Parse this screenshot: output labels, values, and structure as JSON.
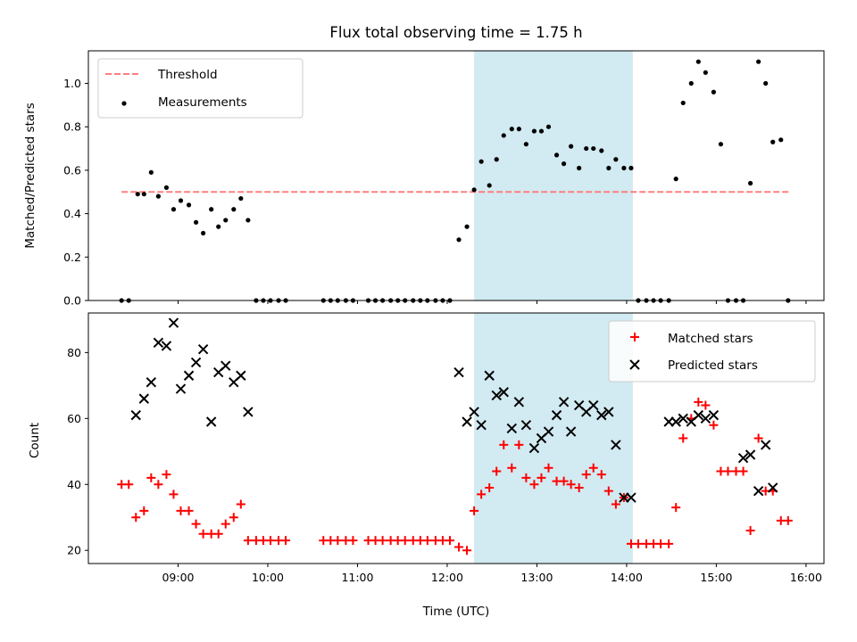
{
  "chart_data": {
    "title": "Flux total observing time = 1.75 h",
    "xlabel": "Time (UTC)",
    "x_unit": "hours UTC",
    "xlim": [
      8.0,
      16.2
    ],
    "xticks": [
      {
        "value": 9,
        "label": "09:00"
      },
      {
        "value": 10,
        "label": "10:00"
      },
      {
        "value": 11,
        "label": "11:00"
      },
      {
        "value": 12,
        "label": "12:00"
      },
      {
        "value": 13,
        "label": "13:00"
      },
      {
        "value": 14,
        "label": "14:00"
      },
      {
        "value": 15,
        "label": "15:00"
      },
      {
        "value": 16,
        "label": "16:00"
      }
    ],
    "shaded_span": {
      "start": 12.3,
      "end": 14.07,
      "color": "#add8e6"
    },
    "panels": [
      {
        "type": "scatter",
        "ylabel": "Matched/Predicted stars",
        "ylim": [
          0,
          1.15
        ],
        "yticks": [
          "0.0",
          "0.2",
          "0.4",
          "0.6",
          "0.8",
          "1.0"
        ],
        "legend_position": "upper-left",
        "threshold": {
          "name": "Threshold",
          "value": 0.5,
          "x_range": [
            8.37,
            15.83
          ],
          "color": "#ff7f7f"
        },
        "series": [
          {
            "name": "Measurements",
            "color": "#000000",
            "x": [
              8.37,
              8.45,
              8.55,
              8.62,
              8.7,
              8.78,
              8.87,
              8.95,
              9.03,
              9.12,
              9.2,
              9.28,
              9.37,
              9.45,
              9.53,
              9.62,
              9.7,
              9.78,
              9.87,
              9.95,
              10.03,
              10.12,
              10.2,
              10.62,
              10.7,
              10.78,
              10.87,
              10.95,
              11.12,
              11.2,
              11.28,
              11.37,
              11.45,
              11.53,
              11.62,
              11.7,
              11.78,
              11.87,
              11.95,
              12.03,
              12.13,
              12.22,
              12.3,
              12.38,
              12.47,
              12.55,
              12.63,
              12.72,
              12.8,
              12.88,
              12.97,
              13.05,
              13.13,
              13.22,
              13.3,
              13.38,
              13.47,
              13.55,
              13.63,
              13.72,
              13.8,
              13.88,
              13.97,
              14.05,
              14.13,
              14.22,
              14.3,
              14.38,
              14.47,
              14.55,
              14.63,
              14.72,
              14.8,
              14.88,
              14.97,
              15.05,
              15.13,
              15.22,
              15.3,
              15.38,
              15.47,
              15.55,
              15.63,
              15.72,
              15.8
            ],
            "y": [
              0,
              0,
              0.49,
              0.49,
              0.59,
              0.48,
              0.52,
              0.42,
              0.46,
              0.44,
              0.36,
              0.31,
              0.42,
              0.34,
              0.37,
              0.42,
              0.47,
              0.37,
              0,
              0,
              0,
              0,
              0,
              0,
              0,
              0,
              0,
              0,
              0,
              0,
              0,
              0,
              0,
              0,
              0,
              0,
              0,
              0,
              0,
              0,
              0.28,
              0.34,
              0.51,
              0.64,
              0.53,
              0.65,
              0.76,
              0.79,
              0.79,
              0.72,
              0.78,
              0.78,
              0.8,
              0.67,
              0.63,
              0.71,
              0.61,
              0.7,
              0.7,
              0.69,
              0.61,
              0.65,
              0.61,
              0.61,
              0,
              0,
              0,
              0,
              0,
              0.56,
              0.91,
              1.0,
              1.1,
              1.05,
              0.96,
              0.72,
              0,
              0,
              0,
              0.54,
              1.1,
              1.0,
              0.73,
              0.74,
              0
            ]
          }
        ]
      },
      {
        "type": "scatter",
        "ylabel": "Count",
        "ylim": [
          16,
          92
        ],
        "yticks": [
          "20",
          "40",
          "60",
          "80"
        ],
        "legend_position": "upper-right",
        "series": [
          {
            "name": "Matched stars",
            "marker": "+",
            "color": "#ff0000",
            "x": [
              8.37,
              8.45,
              8.53,
              8.62,
              8.7,
              8.78,
              8.87,
              8.95,
              9.03,
              9.12,
              9.2,
              9.28,
              9.37,
              9.45,
              9.53,
              9.62,
              9.7,
              9.78,
              9.87,
              9.95,
              10.03,
              10.12,
              10.2,
              10.62,
              10.7,
              10.78,
              10.87,
              10.95,
              11.12,
              11.2,
              11.28,
              11.37,
              11.45,
              11.53,
              11.62,
              11.7,
              11.78,
              11.87,
              11.95,
              12.03,
              12.13,
              12.22,
              12.3,
              12.38,
              12.47,
              12.55,
              12.63,
              12.72,
              12.8,
              12.88,
              12.97,
              13.05,
              13.13,
              13.22,
              13.3,
              13.38,
              13.47,
              13.55,
              13.63,
              13.72,
              13.8,
              13.88,
              13.97,
              14.05,
              14.13,
              14.22,
              14.3,
              14.38,
              14.47,
              14.55,
              14.63,
              14.72,
              14.8,
              14.88,
              14.97,
              15.05,
              15.13,
              15.22,
              15.3,
              15.38,
              15.47,
              15.55,
              15.63,
              15.72,
              15.8
            ],
            "y": [
              40,
              40,
              30,
              32,
              42,
              40,
              43,
              37,
              32,
              32,
              28,
              25,
              25,
              25,
              28,
              30,
              34,
              23,
              23,
              23,
              23,
              23,
              23,
              23,
              23,
              23,
              23,
              23,
              23,
              23,
              23,
              23,
              23,
              23,
              23,
              23,
              23,
              23,
              23,
              23,
              21,
              20,
              32,
              37,
              39,
              44,
              52,
              45,
              52,
              42,
              40,
              42,
              45,
              41,
              41,
              40,
              39,
              43,
              45,
              43,
              38,
              34,
              36,
              22,
              22,
              22,
              22,
              22,
              22,
              33,
              54,
              60,
              65,
              64,
              58,
              44,
              44,
              44,
              44,
              26,
              54,
              38,
              38,
              29,
              29
            ]
          },
          {
            "name": "Predicted stars",
            "marker": "x",
            "color": "#000000",
            "x": [
              8.53,
              8.62,
              8.7,
              8.78,
              8.87,
              8.95,
              9.03,
              9.12,
              9.2,
              9.28,
              9.37,
              9.45,
              9.53,
              9.62,
              9.7,
              9.78,
              12.13,
              12.22,
              12.3,
              12.38,
              12.47,
              12.55,
              12.63,
              12.72,
              12.8,
              12.88,
              12.97,
              13.05,
              13.13,
              13.22,
              13.3,
              13.38,
              13.47,
              13.55,
              13.63,
              13.72,
              13.8,
              13.88,
              13.97,
              14.05,
              14.47,
              14.55,
              14.63,
              14.72,
              14.8,
              14.88,
              14.97,
              15.3,
              15.38,
              15.47,
              15.55,
              15.63
            ],
            "y": [
              61,
              66,
              71,
              83,
              82,
              89,
              69,
              73,
              77,
              81,
              59,
              74,
              76,
              71,
              73,
              62,
              74,
              59,
              62,
              58,
              73,
              67,
              68,
              57,
              65,
              58,
              51,
              54,
              56,
              61,
              65,
              56,
              64,
              62,
              64,
              61,
              62,
              52,
              36,
              36,
              59,
              59,
              60,
              59,
              61,
              60,
              61,
              48,
              49,
              38,
              52,
              39
            ]
          }
        ]
      }
    ]
  }
}
